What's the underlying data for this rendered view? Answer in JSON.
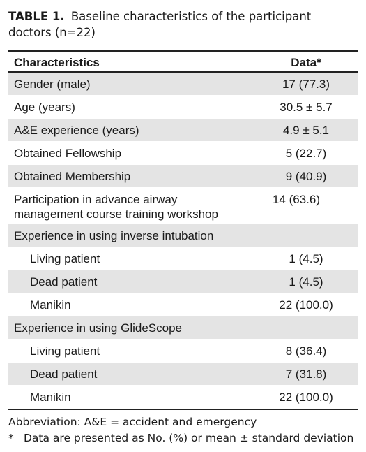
{
  "title": {
    "label": "TABLE 1.",
    "text": "Baseline characteristics of the participant doctors (n=22)"
  },
  "table": {
    "header": [
      "Characteristics",
      "Data*"
    ],
    "rows": [
      [
        "Gender (male)",
        "17 (77.3)"
      ],
      [
        "Age (years)",
        "30.5 ± 5.7"
      ],
      [
        "A&E experience (years)",
        "4.9 ± 5.1"
      ],
      [
        "Obtained Fellowship",
        "5 (22.7)"
      ],
      [
        "Obtained Membership",
        "9 (40.9)"
      ],
      [
        "Participation in advance airway management course training workshop",
        "14 (63.6)"
      ],
      {
        "label": "Experience in using inverse intubation",
        "rows": [
          [
            "Living patient",
            "1 (4.5)"
          ],
          [
            "Dead patient",
            "1 (4.5)"
          ],
          [
            "Manikin",
            "22 (100.0)"
          ]
        ]
      },
      {
        "label": "Experience in using GlideScope",
        "rows": [
          [
            "Living patient",
            "8 (36.4)"
          ],
          [
            "Dead patient",
            "7 (31.8)"
          ],
          [
            "Manikin",
            "22 (100.0)"
          ]
        ]
      }
    ]
  },
  "footnotes": {
    "abbreviation": "Abbreviation: A&E = accident and emergency",
    "note": {
      "marker": "*",
      "text": "Data are presented as No. (%) or mean ± standard deviation"
    }
  }
}
